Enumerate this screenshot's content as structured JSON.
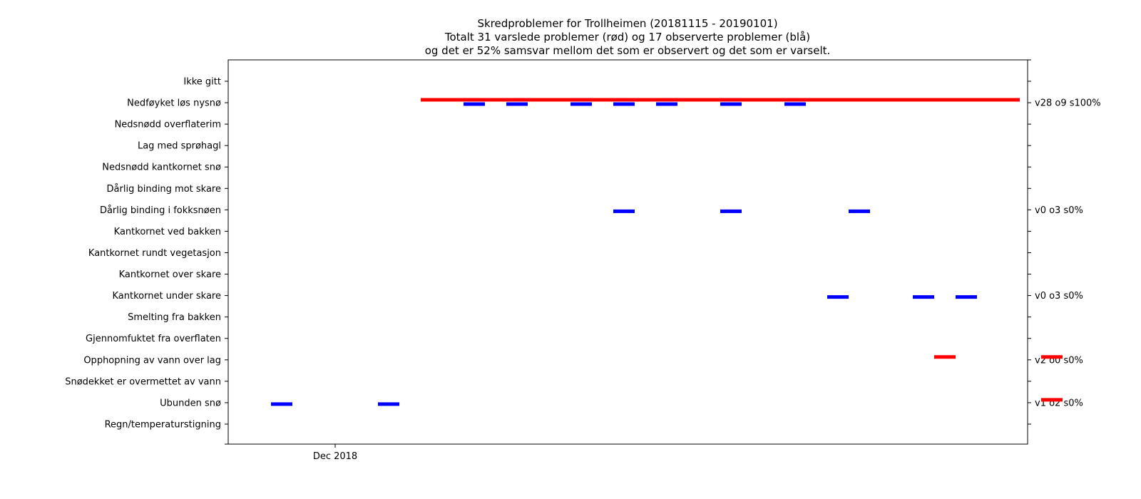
{
  "chart_data": {
    "type": "timeline",
    "title_lines": [
      "Skredproblemer for Trollheimen (20181115 - 20190101)",
      "Totalt 31 varslede problemer (rød) og 17 observerte problemer (blå)",
      "og det er 52% samsvar mellom det som er observert og det som er varselt."
    ],
    "x_range": [
      "2018-11-15",
      "2019-01-01"
    ],
    "x_tick_labels": [
      "Dec 2018"
    ],
    "categories": [
      "Ikke gitt",
      "Nedføyket løs nysnø",
      "Nedsnødd overflaterim",
      "Lag med sprøhagl",
      "Nedsnødd kantkornet snø",
      "Dårlig binding mot skare",
      "Dårlig binding i fokksnøen",
      "Kantkornet ved bakken",
      "Kantkornet rundt vegetasjon",
      "Kantkornet over skare",
      "Kantkornet under skare",
      "Smelting fra bakken",
      "Gjennomfuktet fra overflaten",
      "Opphopning av vann over lag",
      "Snødekket er overmettet av vann",
      "Ubunden snø",
      "Regn/temperaturstigning"
    ],
    "right_labels": [
      "",
      "v28 o9 s100%",
      "",
      "",
      "",
      "",
      "v0 o3 s0%",
      "",
      "",
      "",
      "v0 o3 s0%",
      "",
      "",
      "v2 o0 s0%",
      "",
      "v1 o2 s0%",
      ""
    ],
    "series": [
      {
        "name": "varslede",
        "color": "#ff0000",
        "segments": [
          {
            "category": "Nedføyket løs nysnø",
            "start": "2018-12-03",
            "end": "2018-12-31"
          },
          {
            "category": "Opphopning av vann over lag",
            "start": "2018-12-27",
            "end": "2018-12-28"
          },
          {
            "category": "Opphopning av vann over lag",
            "start": "2019-01-01",
            "end": "2019-01-02"
          },
          {
            "category": "Ubunden snø",
            "start": "2019-01-01",
            "end": "2019-01-02"
          }
        ]
      },
      {
        "name": "observerte",
        "color": "#0000ff",
        "segments": [
          {
            "category": "Nedføyket løs nysnø",
            "start": "2018-12-05",
            "end": "2018-12-06"
          },
          {
            "category": "Nedføyket løs nysnø",
            "start": "2018-12-07",
            "end": "2018-12-08"
          },
          {
            "category": "Nedføyket løs nysnø",
            "start": "2018-12-10",
            "end": "2018-12-11"
          },
          {
            "category": "Nedføyket løs nysnø",
            "start": "2018-12-12",
            "end": "2018-12-13"
          },
          {
            "category": "Nedføyket løs nysnø",
            "start": "2018-12-14",
            "end": "2018-12-15"
          },
          {
            "category": "Nedføyket løs nysnø",
            "start": "2018-12-17",
            "end": "2018-12-18"
          },
          {
            "category": "Nedføyket løs nysnø",
            "start": "2018-12-20",
            "end": "2018-12-21"
          },
          {
            "category": "Dårlig binding i fokksnøen",
            "start": "2018-12-12",
            "end": "2018-12-13"
          },
          {
            "category": "Dårlig binding i fokksnøen",
            "start": "2018-12-17",
            "end": "2018-12-18"
          },
          {
            "category": "Dårlig binding i fokksnøen",
            "start": "2018-12-23",
            "end": "2018-12-24"
          },
          {
            "category": "Kantkornet under skare",
            "start": "2018-12-22",
            "end": "2018-12-23"
          },
          {
            "category": "Kantkornet under skare",
            "start": "2018-12-26",
            "end": "2018-12-27"
          },
          {
            "category": "Kantkornet under skare",
            "start": "2018-12-28",
            "end": "2018-12-29"
          },
          {
            "category": "Ubunden snø",
            "start": "2018-11-26",
            "end": "2018-11-27"
          },
          {
            "category": "Ubunden snø",
            "start": "2018-12-01",
            "end": "2018-12-02"
          }
        ]
      }
    ],
    "grid": false,
    "legend": "none"
  }
}
